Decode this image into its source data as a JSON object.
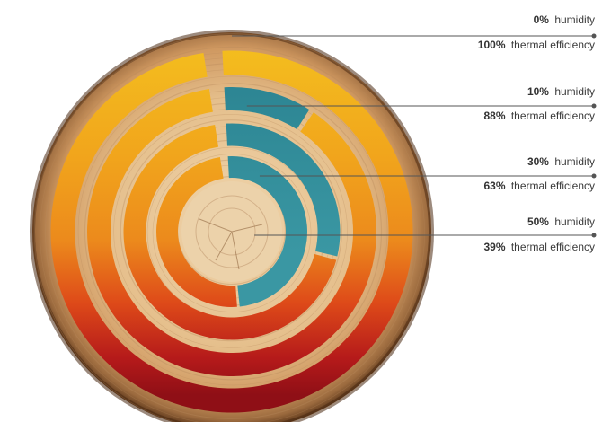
{
  "colors": {
    "background": "#ffffff",
    "wood_light": "#eccca0",
    "wood_mid": "#d7a574",
    "wood_dark": "#8b5a34",
    "wood_edge": "#5a3519",
    "teal": "#2f8c99",
    "teal_dark": "#226e7a",
    "yellow": "#f4be1e",
    "orange": "#ec8e1c",
    "red_orange": "#dd4419",
    "dark_red": "#a5121a",
    "leader_line": "#555555",
    "text": "#3a3a3a"
  },
  "levels": [
    {
      "humidity_value": "0%",
      "humidity_label": "humidity",
      "efficiency_value": "100%",
      "efficiency_label": "thermal efficiency",
      "teal_fraction": 0.0,
      "efficiency_fraction": 1.0
    },
    {
      "humidity_value": "10%",
      "humidity_label": "humidity",
      "efficiency_value": "88%",
      "efficiency_label": "thermal efficiency",
      "teal_fraction": 0.1,
      "efficiency_fraction": 0.88
    },
    {
      "humidity_value": "30%",
      "humidity_label": "humidity",
      "efficiency_value": "63%",
      "efficiency_label": "thermal efficiency",
      "teal_fraction": 0.3,
      "efficiency_fraction": 0.63
    },
    {
      "humidity_value": "50%",
      "humidity_label": "humidity",
      "efficiency_value": "39%",
      "efficiency_label": "thermal efficiency",
      "teal_fraction": 0.5,
      "efficiency_fraction": 0.39
    }
  ]
}
